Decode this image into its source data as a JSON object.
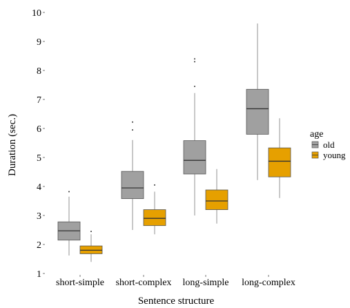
{
  "chart_data": {
    "type": "boxplot",
    "title": "",
    "xlabel": "Sentence structure",
    "ylabel": "Duration (sec.)",
    "ylim": [
      1,
      10
    ],
    "yticks": [
      1,
      2,
      3,
      4,
      5,
      6,
      7,
      8,
      9,
      10
    ],
    "grid": false,
    "legend": {
      "title": "age",
      "position": "right"
    },
    "categories": [
      "short-simple",
      "short-complex",
      "long-simple",
      "long-complex"
    ],
    "series": [
      {
        "name": "old",
        "color": "#a0a0a0",
        "boxes": [
          {
            "whisker_low": 1.62,
            "q1": 2.15,
            "median": 2.47,
            "q3": 2.78,
            "whisker_high": 3.65,
            "outliers": [
              3.82
            ]
          },
          {
            "whisker_low": 2.5,
            "q1": 3.58,
            "median": 3.95,
            "q3": 4.52,
            "whisker_high": 5.6,
            "outliers": [
              5.95,
              6.22
            ]
          },
          {
            "whisker_low": 3.0,
            "q1": 4.43,
            "median": 4.9,
            "q3": 5.58,
            "whisker_high": 7.22,
            "outliers": [
              7.45,
              8.3,
              8.4
            ]
          },
          {
            "whisker_low": 4.22,
            "q1": 5.8,
            "median": 6.68,
            "q3": 7.35,
            "whisker_high": 9.62,
            "outliers": []
          }
        ]
      },
      {
        "name": "young",
        "color": "#e6a000",
        "boxes": [
          {
            "whisker_low": 1.4,
            "q1": 1.68,
            "median": 1.8,
            "q3": 1.95,
            "whisker_high": 2.35,
            "outliers": [
              2.45
            ]
          },
          {
            "whisker_low": 2.35,
            "q1": 2.65,
            "median": 2.9,
            "q3": 3.2,
            "whisker_high": 3.82,
            "outliers": [
              4.05
            ]
          },
          {
            "whisker_low": 2.72,
            "q1": 3.2,
            "median": 3.5,
            "q3": 3.88,
            "whisker_high": 4.6,
            "outliers": []
          },
          {
            "whisker_low": 3.6,
            "q1": 4.33,
            "median": 4.87,
            "q3": 5.33,
            "whisker_high": 6.35,
            "outliers": []
          }
        ]
      }
    ]
  }
}
